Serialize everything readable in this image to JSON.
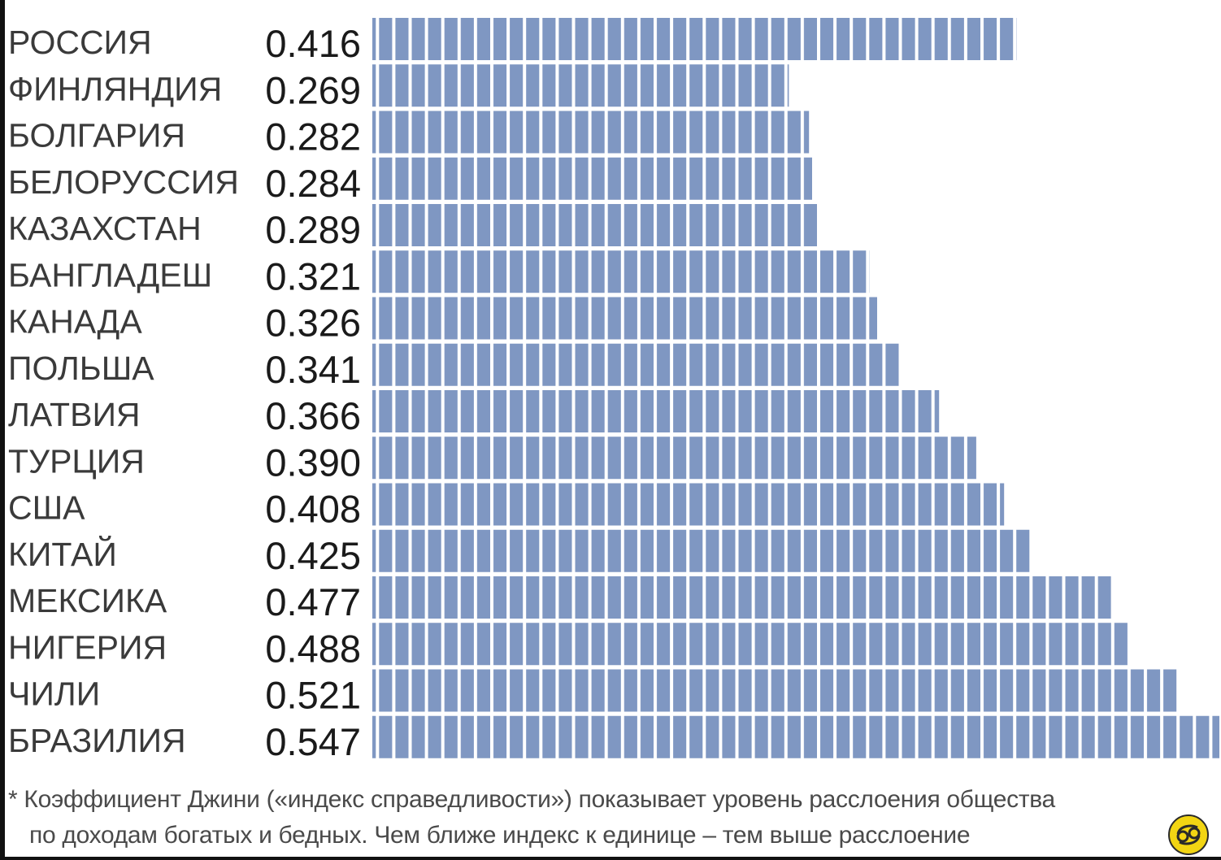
{
  "chart_data": {
    "type": "bar",
    "orientation": "horizontal",
    "categories": [
      "РОССИЯ",
      "ФИНЛЯНДИЯ",
      "БОЛГАРИЯ",
      "БЕЛОРУССИЯ",
      "КАЗАХСТАН",
      "БАНГЛАДЕШ",
      "КАНАДА",
      "ПОЛЬША",
      "ЛАТВИЯ",
      "ТУРЦИЯ",
      "США",
      "КИТАЙ",
      "МЕКСИКА",
      "НИГЕРИЯ",
      "ЧИЛИ",
      "БРАЗИЛИЯ"
    ],
    "values": [
      0.416,
      0.269,
      0.282,
      0.284,
      0.289,
      0.321,
      0.326,
      0.341,
      0.366,
      0.39,
      0.408,
      0.425,
      0.477,
      0.488,
      0.521,
      0.547
    ],
    "value_labels": [
      "0.416",
      "0.269",
      "0.282",
      "0.284",
      "0.289",
      "0.321",
      "0.326",
      "0.341",
      "0.366",
      "0.390",
      "0.408",
      "0.425",
      "0.477",
      "0.488",
      "0.521",
      "0.547"
    ],
    "xlim": [
      0,
      0.547
    ],
    "grid": false,
    "bar_color": "#7f97c2",
    "bar_stripe_color": "#ffffff"
  },
  "footnote": {
    "line1": "* Коэффициент Джини («индекс справедливости») показывает уровень расслоения общества",
    "line2": "по доходам богатых и бедных.  Чем ближе индекс к единице – тем выше расслоение"
  },
  "logo": {
    "icon": "cancer-zodiac-icon",
    "color": "#f2d513"
  }
}
